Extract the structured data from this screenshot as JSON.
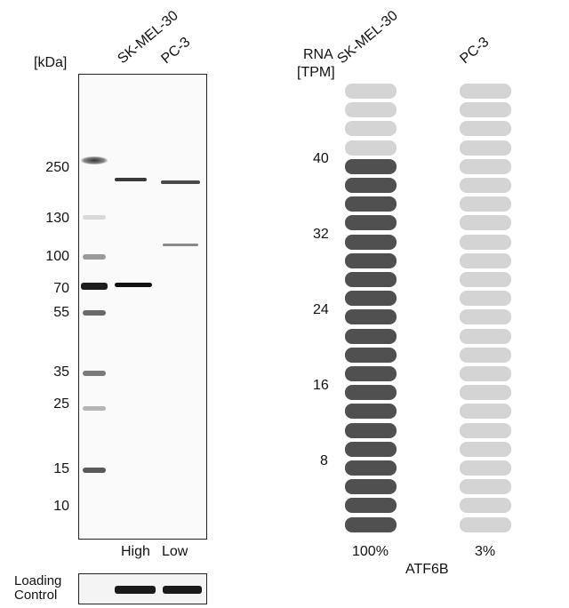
{
  "western_blot": {
    "unit_label": "[kDa]",
    "lanes": [
      {
        "name": "SK-MEL-30",
        "level": "High"
      },
      {
        "name": "PC-3",
        "level": "Low"
      }
    ],
    "markers": [
      "250",
      "130",
      "100",
      "70",
      "55",
      "35",
      "25",
      "15",
      "10"
    ],
    "loading_control_label": [
      "Loading",
      "Control"
    ]
  },
  "rna": {
    "header": [
      "RNA",
      "[TPM]"
    ],
    "scale_ticks": [
      "40",
      "32",
      "24",
      "16",
      "8"
    ],
    "gene": "ATF6B",
    "samples": [
      {
        "name": "SK-MEL-30",
        "percent_label": "100%",
        "filled_segments": 20,
        "total_segments": 24
      },
      {
        "name": "PC-3",
        "percent_label": "3%",
        "filled_segments": 0,
        "total_segments": 24
      }
    ],
    "colors": {
      "filled": "#505050",
      "empty": "#d4d4d4"
    }
  }
}
